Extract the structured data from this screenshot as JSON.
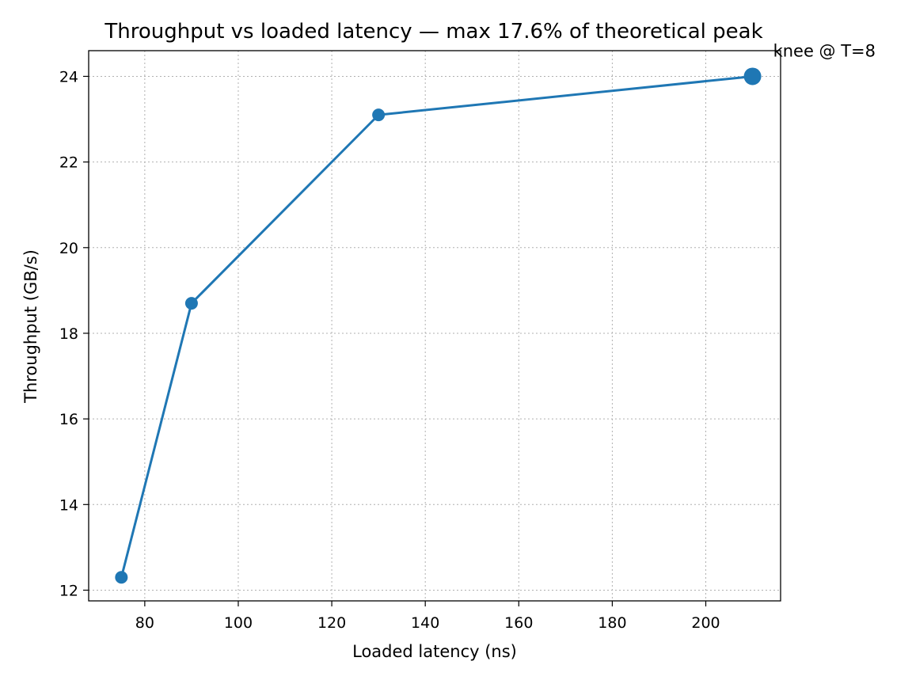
{
  "chart_data": {
    "type": "line",
    "title": "Throughput vs loaded latency — max 17.6% of theoretical peak",
    "xlabel": "Loaded latency (ns)",
    "ylabel": "Throughput (GB/s)",
    "xlim": [
      68,
      216
    ],
    "ylim": [
      11.75,
      24.6
    ],
    "xticks": [
      80,
      100,
      120,
      140,
      160,
      180,
      200
    ],
    "yticks": [
      12,
      14,
      16,
      18,
      20,
      22,
      24
    ],
    "grid": true,
    "series": [
      {
        "color": "#1f77b4",
        "points": [
          {
            "x": 75,
            "y": 12.3
          },
          {
            "x": 90,
            "y": 18.7
          },
          {
            "x": 130,
            "y": 23.1
          },
          {
            "x": 210,
            "y": 24.0
          }
        ]
      }
    ],
    "annotations": [
      {
        "text": "knee @ T=8",
        "x": 210,
        "y": 24.0,
        "highlight": true
      }
    ]
  }
}
